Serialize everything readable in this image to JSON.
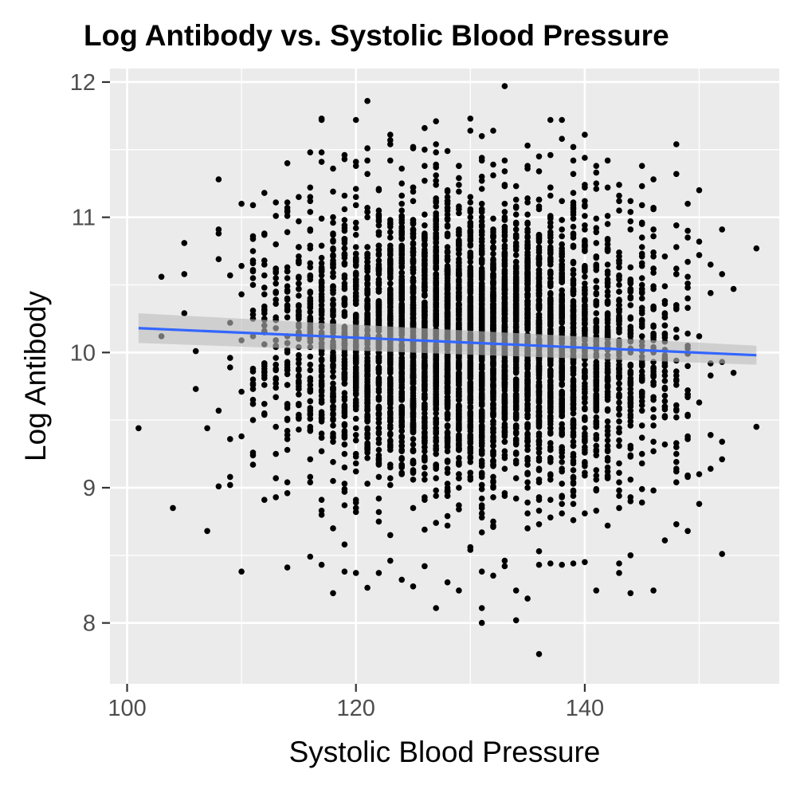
{
  "chart_data": {
    "type": "scatter",
    "title": "Log Antibody vs. Systolic Blood Pressure",
    "xlabel": "Systolic Blood Pressure",
    "ylabel": "Log Antibody",
    "xlim": [
      98.5,
      157
    ],
    "ylim": [
      7.55,
      12.1
    ],
    "x_ticks": [
      100,
      120,
      140
    ],
    "x_tick_labels": [
      "100",
      "120",
      "140"
    ],
    "y_ticks": [
      8,
      9,
      10,
      11,
      12
    ],
    "y_tick_labels": [
      "8",
      "9",
      "10",
      "11",
      "12"
    ],
    "grid": true,
    "legend": "none",
    "colors": {
      "panel": "#ebebeb",
      "grid": "#ffffff",
      "points": "#000000",
      "fit_line": "#3366ff",
      "confidence_band": "#bdbdbd"
    },
    "fit_line": {
      "x": [
        101,
        155
      ],
      "y": [
        10.18,
        9.98
      ],
      "ci_lower": [
        10.07,
        9.91
      ],
      "ci_upper": [
        10.29,
        10.05
      ]
    },
    "series": [
      {
        "points": [
          [
            101,
            9.44
          ],
          [
            103,
            10.56
          ],
          [
            103,
            10.12
          ],
          [
            104,
            8.85
          ],
          [
            105,
            10.81
          ],
          [
            105,
            10.58
          ],
          [
            105,
            10.29
          ],
          [
            106,
            10.01
          ],
          [
            106,
            9.73
          ],
          [
            107,
            9.44
          ],
          [
            107,
            8.68
          ],
          [
            108,
            11.28
          ],
          [
            108,
            10.91
          ],
          [
            108,
            10.88
          ],
          [
            108,
            10.69
          ],
          [
            108,
            9.57
          ],
          [
            108,
            9.01
          ],
          [
            109,
            10.57
          ],
          [
            109,
            10.22
          ],
          [
            109,
            9.96
          ],
          [
            109,
            9.89
          ],
          [
            109,
            9.36
          ],
          [
            109,
            9.08
          ],
          [
            109,
            9.02
          ],
          [
            110,
            11.1
          ],
          [
            110,
            10.64
          ],
          [
            110,
            10.43
          ],
          [
            110,
            10.09
          ],
          [
            110,
            9.71
          ],
          [
            110,
            9.38
          ],
          [
            110,
            8.38
          ],
          [
            111,
            11.09
          ],
          [
            111,
            10.84
          ],
          [
            111,
            10.5
          ],
          [
            111,
            9.86
          ],
          [
            111,
            9.24
          ],
          [
            112,
            11.18
          ],
          [
            112,
            10.31
          ],
          [
            112,
            9.55
          ],
          [
            112,
            8.91
          ],
          [
            114,
            11.01
          ],
          [
            114,
            9.28
          ],
          [
            114,
            8.41
          ],
          [
            116,
            11.48
          ],
          [
            116,
            11.22
          ],
          [
            116,
            8.49
          ],
          [
            117,
            11.72
          ],
          [
            117,
            11.48
          ],
          [
            117,
            8.43
          ],
          [
            118,
            11.36
          ],
          [
            118,
            11.19
          ],
          [
            118,
            8.22
          ],
          [
            119,
            11.43
          ],
          [
            119,
            8.58
          ],
          [
            119,
            8.38
          ],
          [
            120,
            11.72
          ],
          [
            120,
            11.41
          ],
          [
            120,
            8.37
          ],
          [
            121,
            11.86
          ],
          [
            121,
            11.32
          ],
          [
            121,
            8.26
          ],
          [
            122,
            8.37
          ],
          [
            124,
            8.32
          ],
          [
            125,
            11.52
          ],
          [
            125,
            8.27
          ],
          [
            126,
            11.66
          ],
          [
            126,
            8.42
          ],
          [
            127,
            11.71
          ],
          [
            127,
            8.11
          ],
          [
            128,
            11.49
          ],
          [
            128,
            8.3
          ],
          [
            129,
            8.24
          ],
          [
            131,
            8.38
          ],
          [
            132,
            8.35
          ],
          [
            133,
            11.97
          ],
          [
            133,
            11.42
          ],
          [
            133,
            8.42
          ],
          [
            134,
            8.24
          ],
          [
            134,
            8.02
          ],
          [
            135,
            11.53
          ],
          [
            135,
            8.18
          ],
          [
            136,
            7.77
          ],
          [
            137,
            11.72
          ],
          [
            137,
            8.44
          ],
          [
            138,
            11.72
          ],
          [
            138,
            11.58
          ],
          [
            138,
            8.43
          ],
          [
            139,
            11.52
          ],
          [
            139,
            8.44
          ],
          [
            140,
            11.44
          ],
          [
            140,
            8.45
          ],
          [
            141,
            11.38
          ],
          [
            141,
            8.24
          ],
          [
            142,
            11.42
          ],
          [
            143,
            11.24
          ],
          [
            144,
            11.12
          ],
          [
            144,
            8.5
          ],
          [
            144,
            8.22
          ],
          [
            145,
            11.38
          ],
          [
            146,
            11.07
          ],
          [
            146,
            8.24
          ],
          [
            147,
            8.61
          ],
          [
            148,
            11.54
          ],
          [
            148,
            10.78
          ],
          [
            148,
            8.73
          ],
          [
            149,
            10.85
          ],
          [
            149,
            10.56
          ],
          [
            149,
            10.4
          ],
          [
            149,
            9.72
          ],
          [
            149,
            8.68
          ],
          [
            150,
            11.2
          ],
          [
            150,
            10.82
          ],
          [
            150,
            10.72
          ],
          [
            150,
            10.12
          ],
          [
            150,
            9.63
          ],
          [
            150,
            9.1
          ],
          [
            150,
            8.88
          ],
          [
            151,
            10.65
          ],
          [
            151,
            10.44
          ],
          [
            151,
            9.92
          ],
          [
            151,
            9.83
          ],
          [
            151,
            9.39
          ],
          [
            151,
            9.14
          ],
          [
            152,
            10.91
          ],
          [
            152,
            10.58
          ],
          [
            152,
            9.93
          ],
          [
            152,
            9.34
          ],
          [
            152,
            9.21
          ],
          [
            152,
            8.51
          ],
          [
            153,
            10.47
          ],
          [
            153,
            9.85
          ],
          [
            155,
            10.77
          ],
          [
            155,
            9.45
          ]
        ]
      }
    ]
  }
}
